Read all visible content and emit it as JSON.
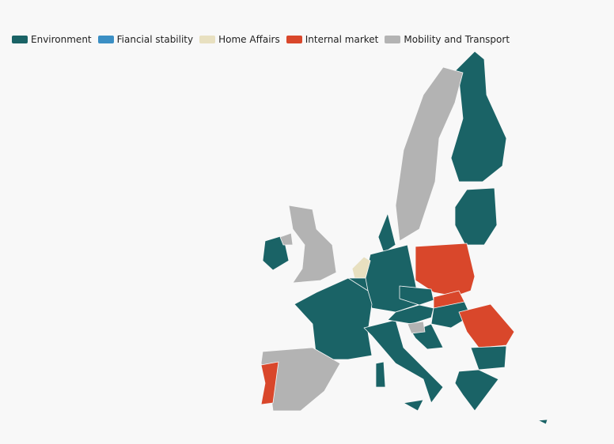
{
  "legend": {
    "items": [
      {
        "name": "Environment",
        "color": "#1a6366"
      },
      {
        "name": "Fiancial stability",
        "color": "#3b8fc4"
      },
      {
        "name": "Home Affairs",
        "color": "#e8e0c0"
      },
      {
        "name": "Internal market",
        "color": "#d9472b"
      },
      {
        "name": "Mobility and Transport",
        "color": "#b3b3b3"
      }
    ]
  }
}
